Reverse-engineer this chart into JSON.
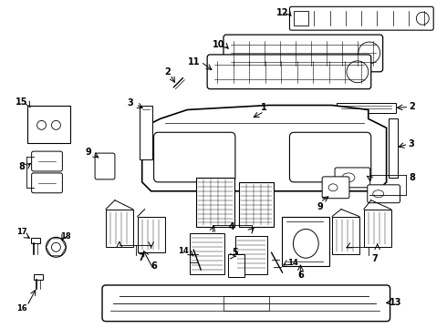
{
  "bg_color": "#ffffff",
  "line_color": "#000000",
  "fig_width": 4.9,
  "fig_height": 3.6,
  "dpi": 100
}
